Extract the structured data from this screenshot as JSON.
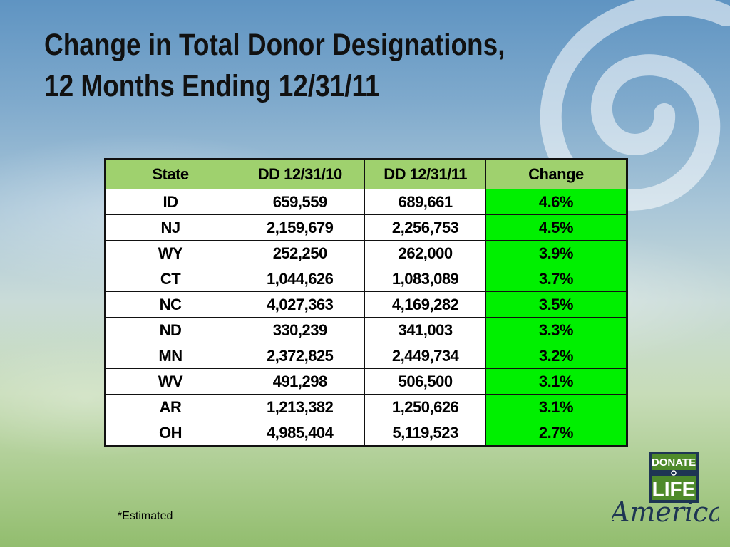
{
  "slide": {
    "title_line1": "Change in Total Donor Designations,",
    "title_line2": "12 Months Ending 12/31/11",
    "footnote": "*Estimated"
  },
  "table": {
    "headers": [
      "State",
      "DD 12/31/10",
      "DD 12/31/11",
      "Change"
    ],
    "rows": [
      {
        "state": "ID",
        "dd10": "659,559",
        "dd11": "689,661",
        "change": "4.6%"
      },
      {
        "state": "NJ",
        "dd10": "2,159,679",
        "dd11": "2,256,753",
        "change": "4.5%"
      },
      {
        "state": "WY",
        "dd10": "252,250",
        "dd11": "262,000",
        "change": "3.9%"
      },
      {
        "state": "CT",
        "dd10": "1,044,626",
        "dd11": "1,083,089",
        "change": "3.7%"
      },
      {
        "state": "NC",
        "dd10": "4,027,363",
        "dd11": "4,169,282",
        "change": "3.5%"
      },
      {
        "state": "ND",
        "dd10": "330,239",
        "dd11": "341,003",
        "change": "3.3%"
      },
      {
        "state": "MN",
        "dd10": "2,372,825",
        "dd11": "2,449,734",
        "change": "3.2%"
      },
      {
        "state": "WV",
        "dd10": "491,298",
        "dd11": "506,500",
        "change": "3.1%"
      },
      {
        "state": "AR",
        "dd10": "1,213,382",
        "dd11": "1,250,626",
        "change": "3.1%"
      },
      {
        "state": "OH",
        "dd10": "4,985,404",
        "dd11": "5,119,523",
        "change": "2.7%"
      }
    ]
  },
  "logo": {
    "line1": "DONATE",
    "line2": "LIFE",
    "line3": "America",
    "colors": {
      "green": "#4e8a2a",
      "navy": "#1e3553"
    }
  },
  "colors": {
    "header_fill": "#9fd16e",
    "change_fill": "#00f000",
    "cell_fill": "#ffffff",
    "border": "#111111"
  }
}
